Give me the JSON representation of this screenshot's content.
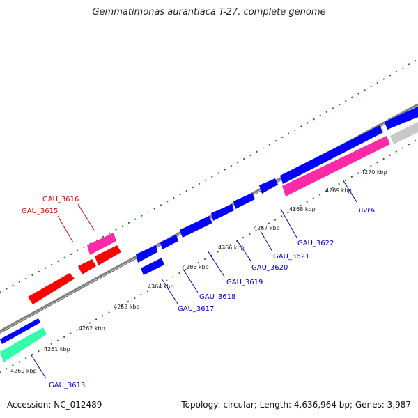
{
  "title": "Gemmatimonas aurantiaca T-27, complete genome",
  "footer": {
    "accession": "Accession: NC_012489",
    "summary": "Topology: circular; Length: 4,636,964 bp; Genes: 3,987"
  },
  "colors": {
    "backbone": "#808080",
    "tick": "#1a7a1a",
    "forward_gene": "#0000ff",
    "reverse_gene": "#ff0000",
    "rrna": "#ff2aa8",
    "other": "#33ffaa",
    "grey_gene": "#c8c8c8",
    "label_blue": "#0000cc",
    "label_red": "#dd0000"
  },
  "scale_labels": [
    "4260 kbp",
    "4261 kbp",
    "4262 kbp",
    "4263 kbp",
    "4264 kbp",
    "4265 kbp",
    "4266 kbp",
    "4267 kbp",
    "4268 kbp",
    "4269 kbp",
    "4270 kbp"
  ],
  "gene_labels": [
    {
      "text": "GAU_3613",
      "color": "blue"
    },
    {
      "text": "GAU_3615",
      "color": "red"
    },
    {
      "text": "GAU_3616",
      "color": "red"
    },
    {
      "text": "GAU_3617",
      "color": "blue"
    },
    {
      "text": "GAU_3618",
      "color": "blue"
    },
    {
      "text": "GAU_3619",
      "color": "blue"
    },
    {
      "text": "GAU_3620",
      "color": "blue"
    },
    {
      "text": "GAU_3621",
      "color": "blue"
    },
    {
      "text": "GAU_3622",
      "color": "blue"
    },
    {
      "text": "uvrA",
      "color": "blue"
    }
  ]
}
